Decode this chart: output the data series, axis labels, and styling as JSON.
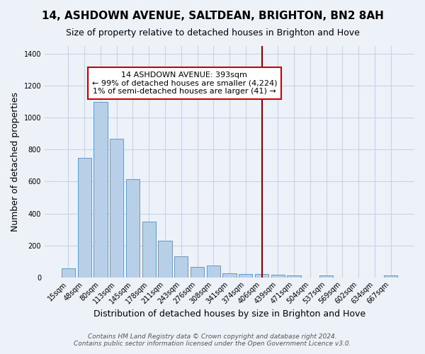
{
  "title": "14, ASHDOWN AVENUE, SALTDEAN, BRIGHTON, BN2 8AH",
  "subtitle": "Size of property relative to detached houses in Brighton and Hove",
  "xlabel": "Distribution of detached houses by size in Brighton and Hove",
  "ylabel": "Number of detached properties",
  "bar_labels": [
    "15sqm",
    "48sqm",
    "80sqm",
    "113sqm",
    "145sqm",
    "178sqm",
    "211sqm",
    "243sqm",
    "276sqm",
    "308sqm",
    "341sqm",
    "374sqm",
    "406sqm",
    "439sqm",
    "471sqm",
    "504sqm",
    "537sqm",
    "569sqm",
    "602sqm",
    "634sqm",
    "667sqm"
  ],
  "bar_values": [
    55,
    750,
    1100,
    870,
    615,
    350,
    228,
    130,
    65,
    72,
    25,
    20,
    20,
    15,
    10,
    0,
    12,
    0,
    0,
    0,
    10
  ],
  "bar_color": "#b8cfe8",
  "bar_edge_color": "#6699cc",
  "vline_x_index": 12.0,
  "vline_color": "#8b0000",
  "annotation_title": "14 ASHDOWN AVENUE: 393sqm",
  "annotation_line1": "← 99% of detached houses are smaller (4,224)",
  "annotation_line2": "1% of semi-detached houses are larger (41) →",
  "annotation_box_color": "white",
  "annotation_box_edge": "#cc0000",
  "ylim": [
    0,
    1450
  ],
  "yticks": [
    0,
    200,
    400,
    600,
    800,
    1000,
    1200,
    1400
  ],
  "footer1": "Contains HM Land Registry data © Crown copyright and database right 2024.",
  "footer2": "Contains public sector information licensed under the Open Government Licence v3.0.",
  "background_color": "#edf2f9",
  "grid_color": "#c8d4e3",
  "title_fontsize": 11,
  "subtitle_fontsize": 9,
  "ylabel_fontsize": 9,
  "xlabel_fontsize": 9,
  "tick_fontsize": 7,
  "footer_fontsize": 6.5,
  "annot_fontsize": 8
}
